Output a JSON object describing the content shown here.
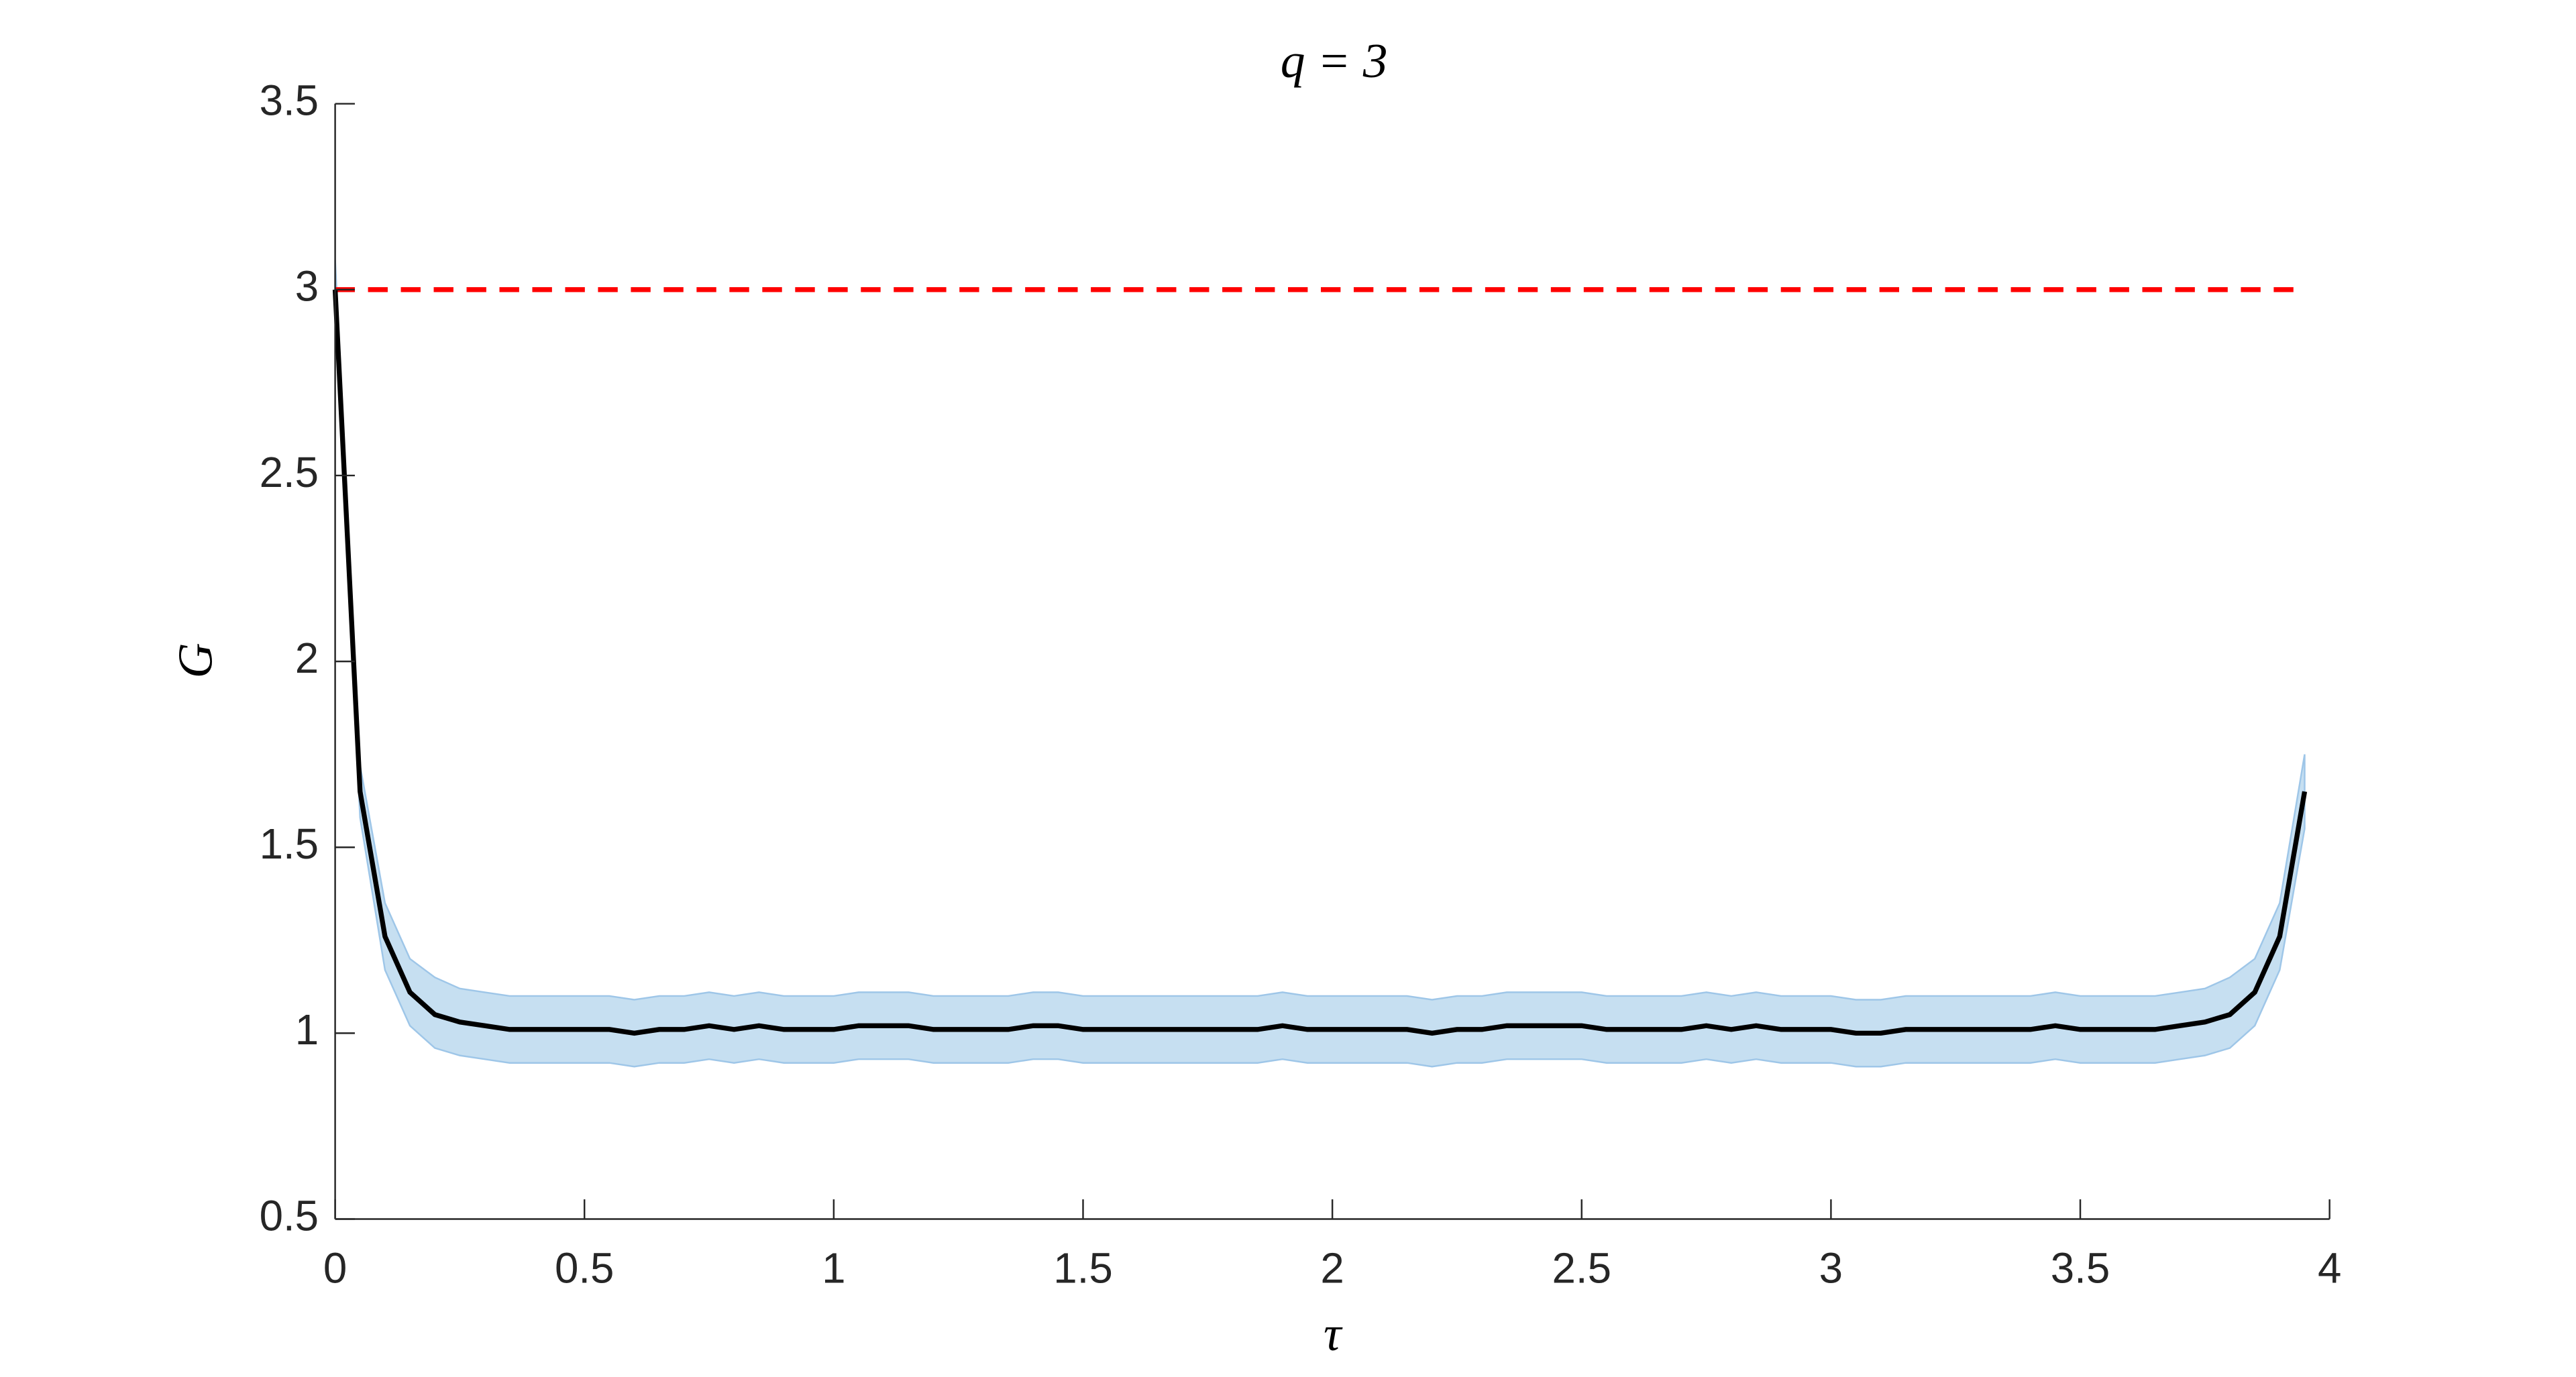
{
  "chart_data": {
    "type": "line",
    "title": "q = 3",
    "xlabel": "τ",
    "ylabel": "G",
    "x": [
      0,
      0.05,
      0.1,
      0.15,
      0.2,
      0.25,
      0.3,
      0.35,
      0.4,
      0.45,
      0.5,
      0.55,
      0.6,
      0.65,
      0.7,
      0.75,
      0.8,
      0.85,
      0.9,
      0.95,
      1,
      1.05,
      1.1,
      1.15,
      1.2,
      1.25,
      1.3,
      1.35,
      1.4,
      1.45,
      1.5,
      1.55,
      1.6,
      1.65,
      1.7,
      1.75,
      1.8,
      1.85,
      1.9,
      1.95,
      2,
      2.05,
      2.1,
      2.15,
      2.2,
      2.25,
      2.3,
      2.35,
      2.4,
      2.45,
      2.5,
      2.55,
      2.6,
      2.65,
      2.7,
      2.75,
      2.8,
      2.85,
      2.9,
      2.95,
      3,
      3.05,
      3.1,
      3.15,
      3.2,
      3.25,
      3.3,
      3.35,
      3.4,
      3.45,
      3.5,
      3.55,
      3.6,
      3.65,
      3.7,
      3.75,
      3.8,
      3.85,
      3.9,
      3.95
    ],
    "series": [
      {
        "color": "#000000",
        "band_color": "#c6dff1",
        "band_edge": "#9ec6e8",
        "values": [
          3.0,
          1.65,
          1.26,
          1.11,
          1.05,
          1.03,
          1.02,
          1.01,
          1.01,
          1.01,
          1.01,
          1.01,
          1.0,
          1.01,
          1.01,
          1.02,
          1.01,
          1.02,
          1.01,
          1.01,
          1.01,
          1.02,
          1.02,
          1.02,
          1.01,
          1.01,
          1.01,
          1.01,
          1.02,
          1.02,
          1.01,
          1.01,
          1.01,
          1.01,
          1.01,
          1.01,
          1.01,
          1.01,
          1.02,
          1.01,
          1.01,
          1.01,
          1.01,
          1.01,
          1.0,
          1.01,
          1.01,
          1.02,
          1.02,
          1.02,
          1.02,
          1.01,
          1.01,
          1.01,
          1.01,
          1.02,
          1.01,
          1.02,
          1.01,
          1.01,
          1.01,
          1.0,
          1.0,
          1.01,
          1.01,
          1.01,
          1.01,
          1.01,
          1.01,
          1.02,
          1.01,
          1.01,
          1.01,
          1.01,
          1.02,
          1.03,
          1.05,
          1.11,
          1.26,
          1.65
        ],
        "upper": [
          3.08,
          1.72,
          1.35,
          1.2,
          1.15,
          1.12,
          1.11,
          1.1,
          1.1,
          1.1,
          1.1,
          1.1,
          1.09,
          1.1,
          1.1,
          1.11,
          1.1,
          1.11,
          1.1,
          1.1,
          1.1,
          1.11,
          1.11,
          1.11,
          1.1,
          1.1,
          1.1,
          1.1,
          1.11,
          1.11,
          1.1,
          1.1,
          1.1,
          1.1,
          1.1,
          1.1,
          1.1,
          1.1,
          1.11,
          1.1,
          1.1,
          1.1,
          1.1,
          1.1,
          1.09,
          1.1,
          1.1,
          1.11,
          1.11,
          1.11,
          1.11,
          1.1,
          1.1,
          1.1,
          1.1,
          1.11,
          1.1,
          1.11,
          1.1,
          1.1,
          1.1,
          1.09,
          1.09,
          1.1,
          1.1,
          1.1,
          1.1,
          1.1,
          1.1,
          1.11,
          1.1,
          1.1,
          1.1,
          1.1,
          1.11,
          1.12,
          1.15,
          1.2,
          1.35,
          1.75
        ],
        "lower": [
          2.92,
          1.58,
          1.17,
          1.02,
          0.96,
          0.94,
          0.93,
          0.92,
          0.92,
          0.92,
          0.92,
          0.92,
          0.91,
          0.92,
          0.92,
          0.93,
          0.92,
          0.93,
          0.92,
          0.92,
          0.92,
          0.93,
          0.93,
          0.93,
          0.92,
          0.92,
          0.92,
          0.92,
          0.93,
          0.93,
          0.92,
          0.92,
          0.92,
          0.92,
          0.92,
          0.92,
          0.92,
          0.92,
          0.93,
          0.92,
          0.92,
          0.92,
          0.92,
          0.92,
          0.91,
          0.92,
          0.92,
          0.93,
          0.93,
          0.93,
          0.93,
          0.92,
          0.92,
          0.92,
          0.92,
          0.93,
          0.92,
          0.93,
          0.92,
          0.92,
          0.92,
          0.91,
          0.91,
          0.92,
          0.92,
          0.92,
          0.92,
          0.92,
          0.92,
          0.93,
          0.92,
          0.92,
          0.92,
          0.92,
          0.93,
          0.94,
          0.96,
          1.02,
          1.17,
          1.55
        ]
      }
    ],
    "reference": {
      "value": 3,
      "color": "#ff0000"
    },
    "xlim": [
      0,
      4
    ],
    "xticks": [
      0,
      0.5,
      1,
      1.5,
      2,
      2.5,
      3,
      3.5,
      4
    ],
    "ylim": [
      0.5,
      3.5
    ],
    "yticks": [
      0.5,
      1,
      1.5,
      2,
      2.5,
      3,
      3.5
    ]
  }
}
